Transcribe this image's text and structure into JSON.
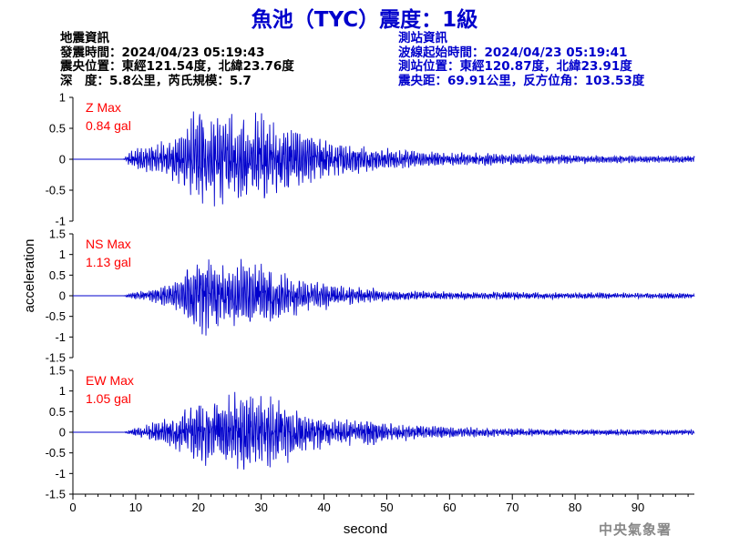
{
  "title": "魚池（TYC）震度：1級",
  "earthquake_info": {
    "heading": "地震資訊",
    "origin_time": "發震時間：2024/04/23 05:19:43",
    "epicenter": "震央位置：東經121.54度，北緯23.76度",
    "depth_magnitude": "深　度：5.8公里，芮氏規模：5.7"
  },
  "station_info": {
    "heading": "測站資訊",
    "wave_start_time": "波線起始時間：2024/04/23 05:19:41",
    "station_location": "測站位置：東經120.87度，北緯23.91度",
    "distance_azimuth": "震央距：69.91公里，反方位角：103.53度"
  },
  "footer": "中央氣象署",
  "chart_data": {
    "type": "line",
    "xlabel": "second",
    "ylabel": "acceleration",
    "xlim": [
      0,
      99
    ],
    "x_ticks": [
      0,
      10,
      20,
      30,
      40,
      50,
      60,
      70,
      80,
      90
    ],
    "x_tick_labels": [
      "0",
      "10",
      "20",
      "30",
      "40",
      "50",
      "60",
      "70",
      "80",
      "90"
    ],
    "line_color": "#0000cc",
    "annotation_color": "#ff0000",
    "panels": [
      {
        "name": "Z",
        "label": "Z Max",
        "max_text": "0.84 gal",
        "ylim": [
          -1,
          1
        ],
        "y_ticks": [
          -1,
          -0.5,
          0,
          0.5,
          1
        ],
        "y_tick_labels": [
          "-1",
          "-0.5",
          "0",
          "0.5",
          "1"
        ],
        "x": [
          0,
          8,
          9,
          10,
          12,
          14,
          16,
          17,
          18,
          19,
          20,
          21,
          22,
          23,
          24,
          25,
          26,
          27,
          28,
          29,
          30,
          31,
          32,
          33,
          34,
          35,
          36,
          37,
          38,
          40,
          42,
          44,
          46,
          48,
          50,
          55,
          60,
          65,
          70,
          75,
          80,
          85,
          90,
          95,
          99
        ],
        "envelope": [
          0,
          0,
          0.1,
          0.15,
          0.2,
          0.25,
          0.3,
          0.4,
          0.55,
          0.65,
          0.7,
          0.72,
          0.65,
          0.6,
          0.65,
          0.6,
          0.6,
          0.65,
          0.7,
          0.65,
          0.6,
          0.6,
          0.5,
          0.5,
          0.55,
          0.5,
          0.45,
          0.4,
          0.35,
          0.3,
          0.25,
          0.22,
          0.2,
          0.18,
          0.15,
          0.13,
          0.1,
          0.09,
          0.08,
          0.07,
          0.06,
          0.06,
          0.05,
          0.05,
          0.05
        ],
        "max": 0.84,
        "min": -0.8
      },
      {
        "name": "NS",
        "label": "NS Max",
        "max_text": "1.13 gal",
        "ylim": [
          -1.5,
          1.5
        ],
        "y_ticks": [
          -1.5,
          -1,
          -0.5,
          0,
          0.5,
          1,
          1.5
        ],
        "y_tick_labels": [
          "-1.5",
          "-1",
          "-0.5",
          "0",
          "0.5",
          "1",
          "1.5"
        ],
        "x": [
          0,
          8,
          9,
          10,
          12,
          14,
          16,
          17,
          18,
          19,
          20,
          21,
          22,
          23,
          24,
          25,
          26,
          27,
          28,
          29,
          30,
          31,
          32,
          33,
          34,
          35,
          36,
          37,
          38,
          40,
          42,
          44,
          46,
          48,
          50,
          55,
          60,
          65,
          70,
          75,
          80,
          85,
          90,
          95,
          99
        ],
        "envelope": [
          0,
          0,
          0.05,
          0.1,
          0.15,
          0.2,
          0.3,
          0.45,
          0.6,
          0.7,
          0.8,
          0.9,
          0.85,
          0.75,
          0.8,
          0.75,
          0.7,
          0.75,
          0.8,
          0.7,
          0.65,
          0.6,
          0.55,
          0.5,
          0.45,
          0.45,
          0.4,
          0.35,
          0.3,
          0.28,
          0.25,
          0.2,
          0.18,
          0.15,
          0.12,
          0.1,
          0.09,
          0.08,
          0.08,
          0.07,
          0.07,
          0.07,
          0.06,
          0.06,
          0.06
        ],
        "max": 1.13,
        "min": -1.1
      },
      {
        "name": "EW",
        "label": "EW Max",
        "max_text": "1.05 gal",
        "ylim": [
          -1.5,
          1.5
        ],
        "y_ticks": [
          -1.5,
          -1,
          -0.5,
          0,
          0.5,
          1,
          1.5
        ],
        "y_tick_labels": [
          "-1.5",
          "-1",
          "-0.5",
          "0",
          "0.5",
          "1",
          "1.5"
        ],
        "x": [
          0,
          8,
          9,
          10,
          12,
          14,
          16,
          17,
          18,
          19,
          20,
          21,
          22,
          23,
          24,
          25,
          26,
          27,
          28,
          29,
          30,
          31,
          32,
          33,
          34,
          35,
          36,
          37,
          38,
          40,
          42,
          44,
          46,
          48,
          50,
          55,
          60,
          65,
          70,
          75,
          80,
          85,
          90,
          95,
          99
        ],
        "envelope": [
          0,
          0,
          0.05,
          0.1,
          0.15,
          0.25,
          0.35,
          0.45,
          0.55,
          0.6,
          0.7,
          0.75,
          0.7,
          0.65,
          0.7,
          0.75,
          0.8,
          0.85,
          0.9,
          0.85,
          0.8,
          0.75,
          0.7,
          0.65,
          0.6,
          0.55,
          0.5,
          0.45,
          0.4,
          0.35,
          0.3,
          0.28,
          0.3,
          0.35,
          0.2,
          0.15,
          0.12,
          0.1,
          0.09,
          0.08,
          0.07,
          0.07,
          0.06,
          0.06,
          0.06
        ],
        "max": 1.05,
        "min": -1.05
      }
    ]
  }
}
